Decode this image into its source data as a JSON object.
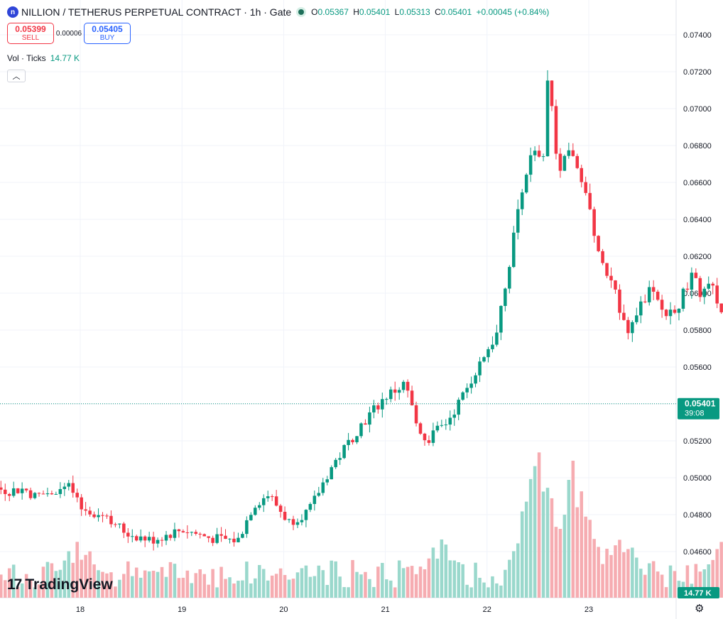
{
  "header": {
    "symbol_icon_label": "n",
    "title": "NILLION / TETHERUS PERPETUAL CONTRACT · 1h · Gate",
    "ohlc": {
      "o_label": "O",
      "o": "0.05367",
      "h_label": "H",
      "h": "0.05401",
      "l_label": "L",
      "l": "0.05313",
      "c_label": "C",
      "c": "0.05401",
      "change": "+0.00045 (+0.84%)"
    }
  },
  "trade": {
    "sell_price": "0.05399",
    "sell_label": "SELL",
    "spread": "0.00006",
    "buy_price": "0.05405",
    "buy_label": "BUY"
  },
  "volume_legend": {
    "label": "Vol · Ticks",
    "value": "14.77 K"
  },
  "last_price": {
    "value": "0.05401",
    "countdown": "39:08",
    "volume_badge": "14.77 K"
  },
  "brand": {
    "logo_text": "TradingView",
    "logo_mark": "17"
  },
  "colors": {
    "up": "#089981",
    "down": "#f23645",
    "vol_up": "#8fd4c7",
    "vol_down": "#f5a3a8",
    "grid": "#f0f3fa"
  },
  "chart_data": {
    "type": "candlestick",
    "interval": "1h",
    "y_axis": {
      "range": [
        0.0443,
        0.075
      ],
      "ticks": [
        "0.04600",
        "0.04800",
        "0.05000",
        "0.05200",
        "0.05400",
        "0.05600",
        "0.05800",
        "0.06000",
        "0.06200",
        "0.06400",
        "0.06600",
        "0.06800",
        "0.07000",
        "0.07200",
        "0.07400"
      ],
      "position": "right"
    },
    "x_axis": {
      "labels": [
        "18",
        "19",
        "20",
        "21",
        "22",
        "23"
      ]
    },
    "grid": true,
    "candles_per_day": 24,
    "first_day_index": -1.78,
    "anchors": [
      [
        -1.78,
        0.0493
      ],
      [
        -1.5,
        0.0502
      ],
      [
        -1.2,
        0.05
      ],
      [
        -0.95,
        0.0497
      ],
      [
        -0.9,
        0.0495
      ],
      [
        -0.7,
        0.0493
      ],
      [
        -0.55,
        0.0494
      ],
      [
        -0.45,
        0.049
      ],
      [
        -0.1,
        0.0495
      ],
      [
        0.0,
        0.0483
      ],
      [
        0.25,
        0.048
      ],
      [
        0.45,
        0.047
      ],
      [
        0.7,
        0.0466
      ],
      [
        1.0,
        0.0472
      ],
      [
        1.3,
        0.0467
      ],
      [
        1.55,
        0.0466
      ],
      [
        1.7,
        0.0485
      ],
      [
        1.85,
        0.0491
      ],
      [
        2.05,
        0.0476
      ],
      [
        2.25,
        0.0482
      ],
      [
        2.45,
        0.0504
      ],
      [
        2.75,
        0.0528
      ],
      [
        3.0,
        0.0544
      ],
      [
        3.2,
        0.0551
      ],
      [
        3.3,
        0.053
      ],
      [
        3.4,
        0.052
      ],
      [
        3.6,
        0.053
      ],
      [
        3.75,
        0.0543
      ],
      [
        3.95,
        0.0565
      ],
      [
        4.1,
        0.0578
      ],
      [
        4.2,
        0.061
      ],
      [
        4.35,
        0.066
      ],
      [
        4.45,
        0.0676
      ],
      [
        4.55,
        0.067
      ],
      [
        4.6,
        0.0718
      ],
      [
        4.7,
        0.0666
      ],
      [
        4.8,
        0.0678
      ],
      [
        4.95,
        0.066
      ],
      [
        5.1,
        0.0622
      ],
      [
        5.25,
        0.06
      ],
      [
        5.4,
        0.058
      ],
      [
        5.6,
        0.0602
      ],
      [
        5.75,
        0.0588
      ],
      [
        5.9,
        0.0595
      ],
      [
        6.0,
        0.061
      ],
      [
        6.1,
        0.06
      ],
      [
        6.2,
        0.0604
      ],
      [
        6.3,
        0.059
      ],
      [
        6.45,
        0.058
      ],
      [
        6.55,
        0.0566
      ],
      [
        6.75,
        0.0548
      ],
      [
        6.95,
        0.0556
      ],
      [
        7.05,
        0.0558
      ],
      [
        7.15,
        0.053
      ],
      [
        7.3,
        0.0518
      ],
      [
        7.45,
        0.05
      ],
      [
        7.6,
        0.051
      ],
      [
        7.75,
        0.0518
      ],
      [
        7.9,
        0.0524
      ],
      [
        8.05,
        0.0516
      ],
      [
        8.2,
        0.051
      ],
      [
        8.3,
        0.0528
      ],
      [
        8.38,
        0.05401
      ]
    ],
    "volume": {
      "max": 14.77,
      "unit": "K",
      "spikes": [
        [
          0.0,
          3.2
        ],
        [
          3.5,
          3.6
        ],
        [
          4.5,
          8.7
        ],
        [
          4.85,
          8.1
        ],
        [
          5.3,
          3.9
        ],
        [
          6.35,
          3.7
        ],
        [
          7.2,
          3.0
        ],
        [
          7.35,
          2.1
        ],
        [
          8.25,
          1.2
        ]
      ]
    }
  }
}
